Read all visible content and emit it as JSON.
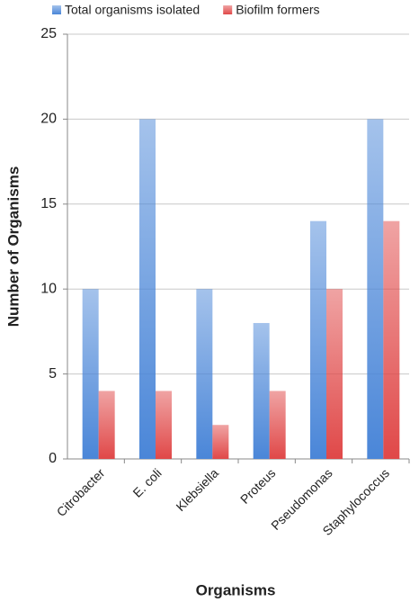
{
  "chart_data": {
    "type": "bar",
    "x_label": "Organisms",
    "y_label": "Number of Organisms",
    "categories": [
      "Citrobacter",
      "E. coli",
      "Klebsiella",
      "Proteus",
      "Pseudomonas",
      "Staphylococcus"
    ],
    "series": [
      {
        "name": "Total organisms isolated",
        "color": "#4a86d8",
        "values": [
          10,
          20,
          10,
          8,
          14,
          20
        ]
      },
      {
        "name": "Biofilm formers",
        "color": "#e04848",
        "values": [
          4,
          4,
          2,
          4,
          10,
          14
        ]
      }
    ],
    "ylim": [
      0,
      25
    ],
    "yticks": [
      0,
      5,
      10,
      15,
      20,
      25
    ],
    "grid": true,
    "legend": "top"
  }
}
